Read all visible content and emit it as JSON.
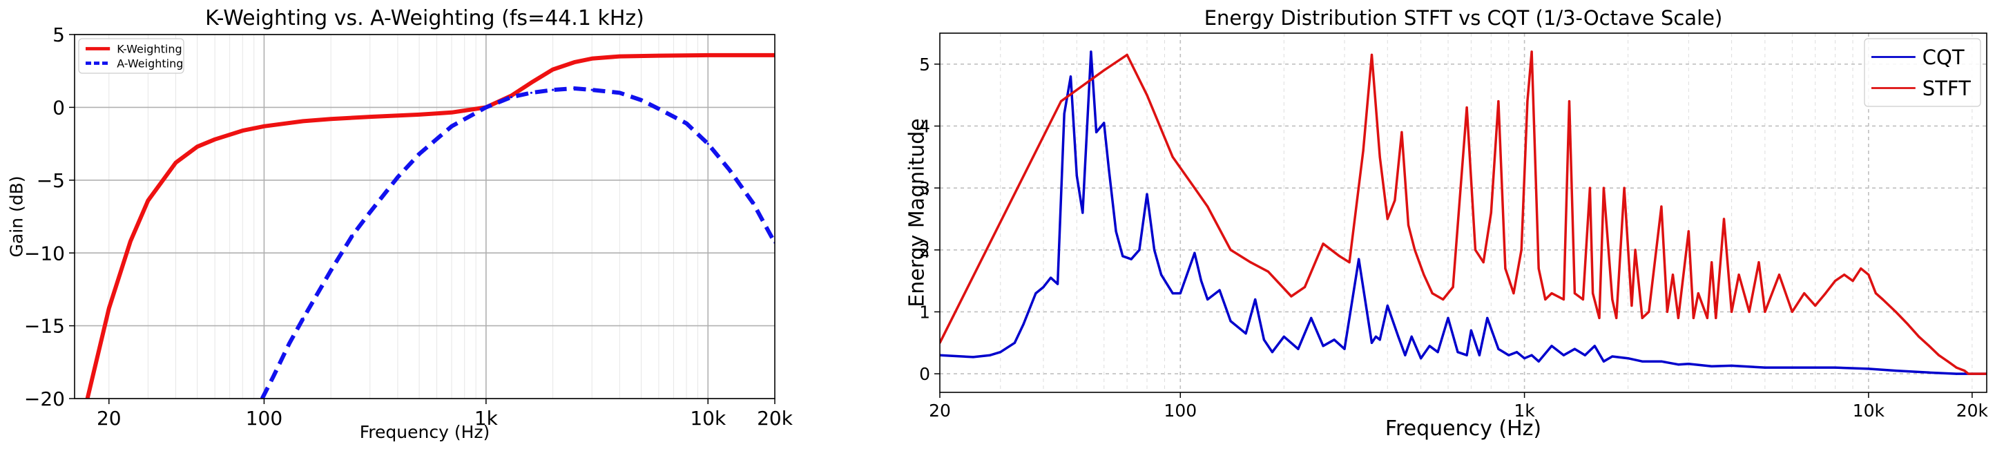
{
  "chart_data": [
    {
      "type": "line",
      "title": "K-Weighting vs. A-Weighting (fs=44.1 kHz)",
      "xlabel": "Frequency (Hz)",
      "ylabel": "Gain (dB)",
      "xscale": "log",
      "xlim": [
        14,
        20000
      ],
      "ylim": [
        -20,
        5
      ],
      "xticks": [
        20,
        100,
        1000,
        10000,
        20000
      ],
      "xtick_labels": [
        "20",
        "100",
        "1k",
        "10k",
        "20k"
      ],
      "yticks": [
        5,
        0,
        -5,
        -10,
        -15,
        -20
      ],
      "ytick_labels": [
        "5",
        "0",
        "−5",
        "−10",
        "−15",
        "−20"
      ],
      "grid": true,
      "legend_position": "top-left",
      "series": [
        {
          "name": "K-Weighting",
          "color": "#ee1111",
          "style": "solid",
          "x": [
            16,
            20,
            25,
            30,
            40,
            50,
            60,
            80,
            100,
            150,
            200,
            300,
            500,
            700,
            1000,
            1300,
            1600,
            2000,
            2500,
            3000,
            4000,
            6000,
            10000,
            20000
          ],
          "y": [
            -20,
            -13.8,
            -9.2,
            -6.4,
            -3.8,
            -2.7,
            -2.2,
            -1.6,
            -1.3,
            -0.95,
            -0.8,
            -0.65,
            -0.5,
            -0.35,
            0.0,
            0.8,
            1.7,
            2.6,
            3.1,
            3.35,
            3.5,
            3.55,
            3.58,
            3.58
          ]
        },
        {
          "name": "A-Weighting",
          "color": "#1111ee",
          "style": "dashed",
          "x": [
            98,
            110,
            130,
            150,
            200,
            250,
            300,
            400,
            500,
            700,
            1000,
            1300,
            1600,
            2000,
            2500,
            3000,
            4000,
            5000,
            6000,
            8000,
            10000,
            12500,
            16000,
            20000
          ],
          "y": [
            -20,
            -18.5,
            -16.2,
            -14.5,
            -11.2,
            -8.8,
            -7.2,
            -4.8,
            -3.2,
            -1.3,
            0.0,
            0.7,
            1.0,
            1.2,
            1.3,
            1.2,
            1.0,
            0.5,
            -0.1,
            -1.1,
            -2.5,
            -4.3,
            -6.6,
            -9.3
          ]
        }
      ]
    },
    {
      "type": "line",
      "title": "Energy Distribution STFT vs CQT (1/3-Octave Scale)",
      "xlabel": "Frequency (Hz)",
      "ylabel": "Energy Magnitude",
      "xscale": "log",
      "xlim": [
        20,
        22050
      ],
      "ylim": [
        -0.3,
        5.5
      ],
      "xticks": [
        20,
        100,
        1000,
        10000,
        20000
      ],
      "xtick_labels": [
        "20",
        "100",
        "1k",
        "10k",
        "20k"
      ],
      "yticks": [
        0,
        1,
        2,
        3,
        4,
        5
      ],
      "ytick_labels": [
        "0",
        "1",
        "2",
        "3",
        "4",
        "5"
      ],
      "grid": true,
      "legend_position": "top-right",
      "series": [
        {
          "name": "CQT",
          "color": "#0000cc",
          "style": "solid",
          "x": [
            20,
            25,
            28,
            30,
            33,
            35,
            38,
            40,
            42,
            44,
            46,
            48,
            50,
            52,
            55,
            57,
            60,
            62,
            65,
            68,
            72,
            76,
            80,
            84,
            88,
            95,
            100,
            110,
            115,
            120,
            130,
            140,
            155,
            165,
            175,
            185,
            200,
            220,
            240,
            260,
            280,
            300,
            330,
            360,
            370,
            380,
            400,
            430,
            450,
            470,
            500,
            530,
            560,
            600,
            640,
            680,
            700,
            740,
            780,
            840,
            900,
            950,
            1000,
            1050,
            1100,
            1200,
            1300,
            1400,
            1500,
            1600,
            1700,
            1800,
            2000,
            2200,
            2500,
            2800,
            3000,
            3500,
            4000,
            5000,
            6000,
            8000,
            10000,
            12000,
            15000,
            18000,
            20000,
            22050
          ],
          "y": [
            0.3,
            0.27,
            0.3,
            0.35,
            0.5,
            0.8,
            1.3,
            1.4,
            1.55,
            1.45,
            4.2,
            4.8,
            3.2,
            2.6,
            5.2,
            3.9,
            4.05,
            3.3,
            2.3,
            1.9,
            1.85,
            2.0,
            2.9,
            2.0,
            1.6,
            1.3,
            1.3,
            1.95,
            1.5,
            1.2,
            1.35,
            0.85,
            0.65,
            1.2,
            0.55,
            0.35,
            0.6,
            0.4,
            0.9,
            0.45,
            0.55,
            0.4,
            1.85,
            0.5,
            0.6,
            0.55,
            1.1,
            0.6,
            0.3,
            0.6,
            0.25,
            0.45,
            0.35,
            0.9,
            0.35,
            0.3,
            0.7,
            0.3,
            0.9,
            0.4,
            0.3,
            0.35,
            0.25,
            0.3,
            0.2,
            0.45,
            0.3,
            0.4,
            0.3,
            0.45,
            0.2,
            0.28,
            0.25,
            0.2,
            0.2,
            0.15,
            0.16,
            0.12,
            0.13,
            0.1,
            0.1,
            0.1,
            0.08,
            0.05,
            0.02,
            0.0,
            0.0,
            0.0
          ]
        },
        {
          "name": "STFT",
          "color": "#dd1111",
          "style": "solid",
          "x": [
            20,
            45,
            60,
            70,
            80,
            95,
            110,
            120,
            140,
            160,
            180,
            210,
            230,
            260,
            290,
            310,
            340,
            360,
            380,
            400,
            420,
            440,
            460,
            480,
            510,
            540,
            580,
            620,
            680,
            720,
            760,
            800,
            840,
            880,
            930,
            980,
            1020,
            1050,
            1100,
            1150,
            1200,
            1300,
            1350,
            1400,
            1480,
            1550,
            1580,
            1650,
            1700,
            1800,
            1850,
            1950,
            2050,
            2100,
            2200,
            2300,
            2500,
            2600,
            2700,
            2800,
            3000,
            3100,
            3200,
            3400,
            3500,
            3600,
            3800,
            4000,
            4200,
            4500,
            4800,
            5000,
            5500,
            6000,
            6500,
            7000,
            7500,
            8000,
            8500,
            9000,
            9500,
            10000,
            10500,
            11000,
            12000,
            13000,
            14000,
            15000,
            16000,
            17000,
            18000,
            19000,
            19500,
            20000,
            21000,
            22050
          ],
          "y": [
            0.5,
            4.4,
            4.9,
            5.15,
            4.5,
            3.5,
            3.0,
            2.7,
            2.0,
            1.8,
            1.65,
            1.25,
            1.4,
            2.1,
            1.9,
            1.8,
            3.6,
            5.15,
            3.5,
            2.5,
            2.8,
            3.9,
            2.4,
            2.0,
            1.6,
            1.3,
            1.2,
            1.4,
            4.3,
            2.0,
            1.8,
            2.6,
            4.4,
            1.7,
            1.3,
            2.0,
            4.4,
            5.2,
            1.7,
            1.2,
            1.3,
            1.2,
            4.4,
            1.3,
            1.2,
            3.0,
            1.3,
            0.9,
            3.0,
            1.2,
            0.9,
            3.0,
            1.1,
            2.0,
            0.9,
            1.0,
            2.7,
            1.0,
            1.6,
            0.9,
            2.3,
            0.9,
            1.3,
            0.9,
            1.8,
            0.9,
            2.5,
            1.0,
            1.6,
            1.0,
            1.8,
            1.0,
            1.6,
            1.0,
            1.3,
            1.1,
            1.3,
            1.5,
            1.6,
            1.5,
            1.7,
            1.6,
            1.3,
            1.2,
            1.0,
            0.8,
            0.6,
            0.45,
            0.3,
            0.2,
            0.1,
            0.05,
            0.0,
            0.0,
            0.0,
            0.0
          ]
        }
      ]
    }
  ]
}
